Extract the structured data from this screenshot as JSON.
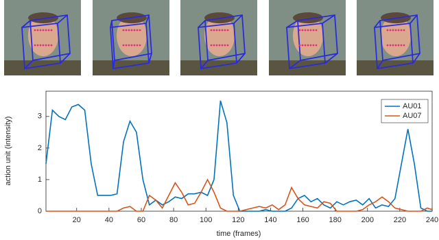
{
  "chart_data": {
    "type": "line",
    "xlabel": "time (frames)",
    "ylabel": "action unit (intensity)",
    "x": [
      1,
      5,
      9,
      13,
      17,
      21,
      25,
      29,
      33,
      37,
      41,
      45,
      49,
      53,
      57,
      61,
      65,
      69,
      73,
      77,
      81,
      85,
      89,
      93,
      97,
      101,
      105,
      109,
      113,
      117,
      121,
      125,
      129,
      133,
      137,
      141,
      145,
      149,
      153,
      157,
      161,
      165,
      169,
      173,
      177,
      181,
      185,
      189,
      193,
      197,
      201,
      205,
      209,
      213,
      217,
      221,
      225,
      229,
      233,
      237,
      240
    ],
    "series": [
      {
        "name": "AU01",
        "color": "#0072bd",
        "values": [
          1.5,
          3.2,
          3.0,
          2.9,
          3.3,
          3.38,
          3.2,
          1.5,
          0.5,
          0.5,
          0.5,
          0.55,
          2.2,
          2.85,
          2.5,
          1.0,
          0.2,
          0.35,
          0.2,
          0.3,
          0.45,
          0.4,
          0.55,
          0.55,
          0.6,
          0.5,
          1.0,
          3.5,
          2.8,
          0.5,
          0.0,
          0,
          0,
          0,
          0.05,
          0,
          0,
          0,
          0.1,
          0.4,
          0.5,
          0.3,
          0.4,
          0.2,
          0.1,
          0.3,
          0.2,
          0.3,
          0.35,
          0.2,
          0.4,
          0.1,
          0.2,
          0.15,
          0.4,
          1.5,
          2.6,
          1.5,
          0.1,
          0,
          0
        ]
      },
      {
        "name": "AU07",
        "color": "#d95319",
        "values": [
          0,
          0,
          0,
          0,
          0,
          0,
          0,
          0,
          0,
          0,
          0,
          0,
          0.1,
          0.15,
          0,
          0,
          0.5,
          0.35,
          0.1,
          0.5,
          0.9,
          0.6,
          0.2,
          0.25,
          0.6,
          1.0,
          0.6,
          0.1,
          0,
          0,
          0,
          0.05,
          0.1,
          0.15,
          0.1,
          0.2,
          0.05,
          0.2,
          0.75,
          0.4,
          0.2,
          0.15,
          0.1,
          0.3,
          0.25,
          0,
          0,
          0,
          0,
          0.05,
          0.2,
          0.3,
          0.45,
          0.3,
          0.1,
          0.05,
          0,
          0,
          0,
          0.1,
          0.05
        ]
      }
    ],
    "xlim": [
      1,
      240
    ],
    "xticks": [
      20,
      40,
      60,
      80,
      100,
      120,
      140,
      160,
      180,
      200,
      220,
      240
    ],
    "ylim": [
      0,
      3.8
    ],
    "yticks": [
      0,
      1,
      2,
      3
    ],
    "legend": "upper right"
  }
}
